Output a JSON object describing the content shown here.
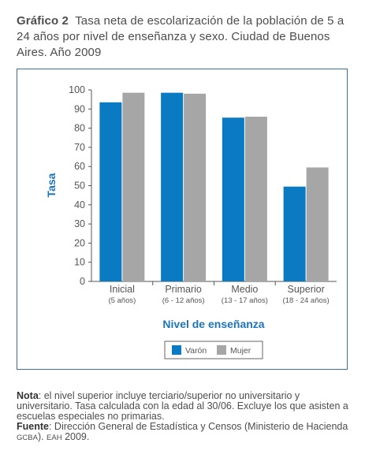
{
  "heading": {
    "label": "Gráfico 2",
    "text": "Tasa neta de escolarización de la población de 5 a 24 años por nivel de enseñanza y sexo. Ciudad de Buenos Aires. Año 2009"
  },
  "chart_data": {
    "type": "bar",
    "categories": [
      "Inicial",
      "Primario",
      "Medio",
      "Superior"
    ],
    "category_sublabels": [
      "(5 años)",
      "(6 - 12 años)",
      "(13 - 17 años)",
      "(18 - 24 años)"
    ],
    "series": [
      {
        "name": "Varón",
        "values": [
          93.5,
          98.5,
          85.5,
          49.5
        ],
        "color": "#0a7bc2"
      },
      {
        "name": "Mujer",
        "values": [
          98.5,
          98.0,
          86.0,
          59.5
        ],
        "color": "#a6a6a6"
      }
    ],
    "xlabel": "Nivel de enseñanza",
    "ylabel": "Tasa",
    "ylim": [
      0,
      100
    ],
    "yticks": [
      0,
      10,
      20,
      30,
      40,
      50,
      60,
      70,
      80,
      90,
      100
    ],
    "grid": false,
    "legend_position": "bottom-center",
    "label_color": "#1c75bc"
  },
  "notes": {
    "nota_label": "Nota",
    "nota_text": ": el nivel superior incluye terciario/superior no universitario y universitario. Tasa calculada con la edad al 30/06. Excluye los que asisten a escuelas especiales no primarias.",
    "fuente_label": "Fuente",
    "fuente_text_1": ": Dirección General de Estadística y Censos (Ministerio de Hacienda ",
    "fuente_small_1": "GCBA",
    "fuente_text_2": "). ",
    "fuente_small_2": "EAH",
    "fuente_text_3": " 2009."
  }
}
